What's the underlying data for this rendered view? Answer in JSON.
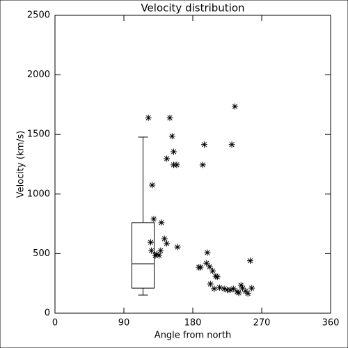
{
  "chart_data": {
    "type": "scatter",
    "title": "Velocity distribution",
    "x_label": "Angle from north",
    "y_label": "Velocity (km/s)",
    "xlim": [
      0,
      360
    ],
    "xticks": [
      0,
      90,
      180,
      270,
      360
    ],
    "ylim": [
      0,
      2500
    ],
    "yticks": [
      0,
      500,
      1000,
      1500,
      2000,
      2500
    ],
    "color": "#000000",
    "grid": false,
    "x": [
      122,
      150,
      235,
      153,
      195,
      231,
      155,
      146,
      155,
      159,
      193,
      127,
      129,
      139,
      143,
      125,
      146,
      160,
      199,
      126,
      138,
      133,
      136,
      131,
      188,
      190,
      198,
      202,
      206,
      210,
      212,
      203,
      208,
      215,
      221,
      225,
      229,
      233,
      238,
      243,
      245,
      240,
      249,
      252,
      255,
      257
    ],
    "values": [
      1640,
      1640,
      1735,
      1485,
      1415,
      1415,
      1355,
      1297,
      1245,
      1245,
      1245,
      1075,
      790,
      760,
      625,
      595,
      585,
      555,
      508,
      525,
      525,
      495,
      485,
      485,
      385,
      385,
      420,
      390,
      355,
      310,
      305,
      245,
      205,
      215,
      205,
      195,
      195,
      205,
      180,
      235,
      210,
      170,
      185,
      165,
      440,
      210
    ],
    "box": {
      "x": 115,
      "whisker_low": 152,
      "q1": 210,
      "median": 415,
      "q3": 760,
      "whisker_high": 1478
    }
  }
}
